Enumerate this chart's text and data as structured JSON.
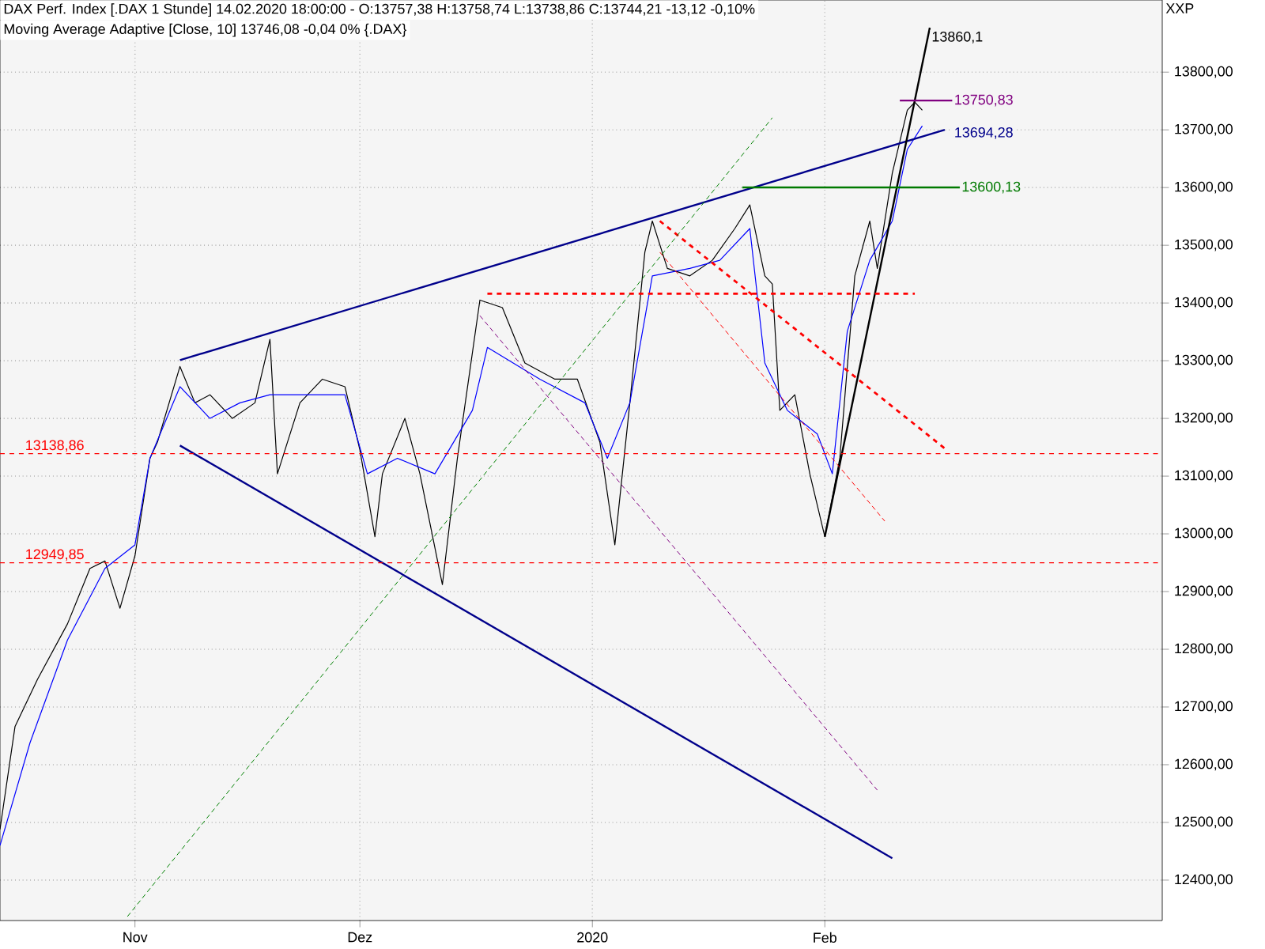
{
  "chart_data": {
    "type": "line",
    "title": "DAX Perf. Index [.DAX  1 Stunde] 14.02.2020 18:00:00 - O:13757,38 H:13758,74 L:13738,86 C:13744,21 -13,12 -0,10%",
    "subtitle": "Moving Average Adaptive [Close, 10] 13746,08 -0,04 0% {.DAX}",
    "xlim": [
      "2019-10-14",
      "2020-03-17"
    ],
    "ylim": [
      12330,
      13925
    ],
    "xticks": [
      {
        "value": "2019-11-01",
        "label": "Nov"
      },
      {
        "value": "2019-12-01",
        "label": "Dez"
      },
      {
        "value": "2020-01-01",
        "label": "2020"
      },
      {
        "value": "2020-02-01",
        "label": "Feb"
      }
    ],
    "yticks": [
      {
        "value": 12400,
        "label": "12400,00"
      },
      {
        "value": 12500,
        "label": "12500,00"
      },
      {
        "value": 12600,
        "label": "12600,00"
      },
      {
        "value": 12700,
        "label": "12700,00"
      },
      {
        "value": 12800,
        "label": "12800,00"
      },
      {
        "value": 12900,
        "label": "12900,00"
      },
      {
        "value": 13000,
        "label": "13000,00"
      },
      {
        "value": 13100,
        "label": "13100,00"
      },
      {
        "value": 13200,
        "label": "13200,00"
      },
      {
        "value": 13300,
        "label": "13300,00"
      },
      {
        "value": 13400,
        "label": "13400,00"
      },
      {
        "value": 13500,
        "label": "13500,00"
      },
      {
        "value": 13600,
        "label": "13600,00"
      },
      {
        "value": 13700,
        "label": "13700,00"
      },
      {
        "value": 13800,
        "label": "13800,00"
      }
    ],
    "grid": true,
    "marker": "none",
    "series": [
      {
        "color": "#000000",
        "line_style": "solid",
        "x": [
          "2019-10-14",
          "2019-10-16",
          "2019-10-19",
          "2019-10-23",
          "2019-10-26",
          "2019-10-28",
          "2019-10-30",
          "2019-11-01",
          "2019-11-03",
          "2019-11-04",
          "2019-11-07",
          "2019-11-09",
          "2019-11-11",
          "2019-11-14",
          "2019-11-17",
          "2019-11-19",
          "2019-11-20",
          "2019-11-23",
          "2019-11-26",
          "2019-11-29",
          "2019-12-01",
          "2019-12-03",
          "2019-12-04",
          "2019-12-07",
          "2019-12-09",
          "2019-12-12",
          "2019-12-14",
          "2019-12-17",
          "2019-12-20",
          "2019-12-23",
          "2019-12-27",
          "2019-12-30",
          "2020-01-02",
          "2020-01-04",
          "2020-01-06",
          "2020-01-08",
          "2020-01-09",
          "2020-01-11",
          "2020-01-14",
          "2020-01-17",
          "2020-01-20",
          "2020-01-22",
          "2020-01-24",
          "2020-01-25",
          "2020-01-26",
          "2020-01-28",
          "2020-01-30",
          "2020-02-01",
          "2020-02-03",
          "2020-02-05",
          "2020-02-07",
          "2020-02-08",
          "2020-02-10",
          "2020-02-12",
          "2020-02-13",
          "2020-02-14"
        ],
        "values": [
          12488,
          12666,
          12748,
          12844,
          12940,
          12953,
          12871,
          12962,
          13131,
          13159,
          13290,
          13227,
          13241,
          13200,
          13227,
          13337,
          13104,
          13227,
          13268,
          13255,
          13145,
          12995,
          13104,
          13200,
          13104,
          12912,
          13131,
          13405,
          13392,
          13296,
          13268,
          13268,
          13159,
          12981,
          13227,
          13488,
          13542,
          13460,
          13447,
          13474,
          13529,
          13570,
          13447,
          13433,
          13214,
          13241,
          13104,
          12995,
          13131,
          13447,
          13542,
          13460,
          13625,
          13734,
          13748,
          13734
        ]
      },
      {
        "color": "#0000ff",
        "line_style": "solid",
        "x": [
          "2019-10-14",
          "2019-10-18",
          "2019-10-23",
          "2019-10-28",
          "2019-11-01",
          "2019-11-03",
          "2019-11-07",
          "2019-11-11",
          "2019-11-15",
          "2019-11-19",
          "2019-11-24",
          "2019-11-29",
          "2019-12-02",
          "2019-12-06",
          "2019-12-11",
          "2019-12-16",
          "2019-12-18",
          "2019-12-25",
          "2019-12-31",
          "2020-01-03",
          "2020-01-06",
          "2020-01-09",
          "2020-01-14",
          "2020-01-18",
          "2020-01-22",
          "2020-01-24",
          "2020-01-27",
          "2020-01-31",
          "2020-02-02",
          "2020-02-04",
          "2020-02-07",
          "2020-02-10",
          "2020-02-12",
          "2020-02-14"
        ],
        "values": [
          12460,
          12638,
          12816,
          12940,
          12981,
          13131,
          13255,
          13200,
          13227,
          13241,
          13241,
          13241,
          13104,
          13131,
          13104,
          13214,
          13323,
          13268,
          13227,
          13131,
          13227,
          13447,
          13460,
          13474,
          13529,
          13296,
          13214,
          13173,
          13104,
          13351,
          13474,
          13542,
          13666,
          13707
        ]
      },
      {
        "color": "#00008b",
        "line_style": "solid",
        "x": [
          "2019-11-07",
          "2020-02-17"
        ],
        "values": [
          13301,
          13700
        ]
      },
      {
        "color": "#00008b",
        "line_style": "solid",
        "x": [
          "2019-11-07",
          "2020-02-10"
        ],
        "values": [
          13153,
          12438
        ]
      },
      {
        "color": "#000000",
        "line_style": "solid",
        "x": [
          "2020-02-01",
          "2020-02-15"
        ],
        "values": [
          12995,
          13877
        ]
      },
      {
        "color": "#007a00",
        "line_style": "solid",
        "x": [
          "2020-01-21",
          "2020-02-19"
        ],
        "values": [
          13600.13,
          13600.13
        ]
      },
      {
        "color": "#800080",
        "line_style": "solid",
        "x": [
          "2020-02-11",
          "2020-02-18"
        ],
        "values": [
          13750.83,
          13750.83
        ]
      },
      {
        "color": "#ff0000",
        "line_style": "dashed",
        "x": [
          "2019-12-18",
          "2020-02-13"
        ],
        "values": [
          13416,
          13416
        ]
      },
      {
        "color": "#ff0000",
        "line_style": "dashed",
        "x": [
          "2020-01-10",
          "2020-02-17"
        ],
        "values": [
          13542,
          13148
        ]
      },
      {
        "color": "#ff0000",
        "line_style": "dotted",
        "x": [
          "2020-01-10",
          "2020-02-09"
        ],
        "values": [
          13488,
          13022
        ]
      },
      {
        "color": "#800080",
        "line_style": "dotted",
        "x": [
          "2019-12-17",
          "2020-02-08"
        ],
        "values": [
          13378,
          12556
        ]
      },
      {
        "color": "#008000",
        "line_style": "dotted",
        "x": [
          "2019-10-31",
          "2020-01-25"
        ],
        "values": [
          12337,
          13721
        ]
      }
    ],
    "ref_lines": [
      {
        "axis": "y",
        "value": 13138.86,
        "label": "13138,86",
        "color": "#ff0000",
        "line_style": "dashed"
      },
      {
        "axis": "y",
        "value": 12949.85,
        "label": "12949,85",
        "color": "#ff0000",
        "line_style": "dashed"
      }
    ],
    "annotations": [
      "XXP",
      {
        "text": "13860,1",
        "x": "2020-02-15",
        "y": 13860.1
      },
      {
        "text": "13750,83",
        "x": "2020-02-18",
        "y": 13750.83
      },
      {
        "text": "13694,28",
        "x": "2020-02-18",
        "y": 13694.28
      },
      {
        "text": "13600,13",
        "x": "2020-02-19",
        "y": 13600.13
      }
    ]
  }
}
